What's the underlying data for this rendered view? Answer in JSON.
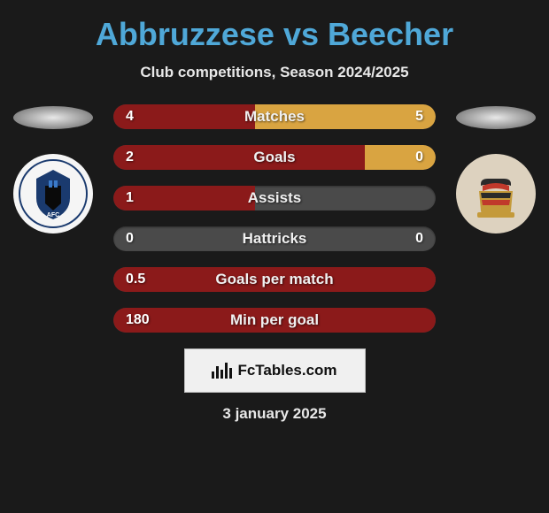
{
  "title": "Abbruzzese vs Beecher",
  "subtitle": "Club competitions, Season 2024/2025",
  "title_color": "#4fa8d8",
  "left_team_color": "#8b1a1a",
  "right_team_color": "#d9a441",
  "track_color": "#4a4a4a",
  "metrics": [
    {
      "label": "Matches",
      "left_val": "4",
      "right_val": "5",
      "left_pct": 44,
      "right_pct": 56
    },
    {
      "label": "Goals",
      "left_val": "2",
      "right_val": "0",
      "left_pct": 78,
      "right_pct": 22
    },
    {
      "label": "Assists",
      "left_val": "1",
      "right_val": "",
      "left_pct": 44,
      "right_pct": 0
    },
    {
      "label": "Hattricks",
      "left_val": "0",
      "right_val": "0",
      "left_pct": 0,
      "right_pct": 0
    },
    {
      "label": "Goals per match",
      "left_val": "0.5",
      "right_val": "",
      "left_pct": 100,
      "right_pct": 0
    },
    {
      "label": "Min per goal",
      "left_val": "180",
      "right_val": "",
      "left_pct": 100,
      "right_pct": 0
    }
  ],
  "footer_brand": "FcTables.com",
  "footer_date": "3 january 2025",
  "crest_left": {
    "bg": "#f5f5f5"
  },
  "crest_right": {
    "bg": "#ddd2bf"
  }
}
